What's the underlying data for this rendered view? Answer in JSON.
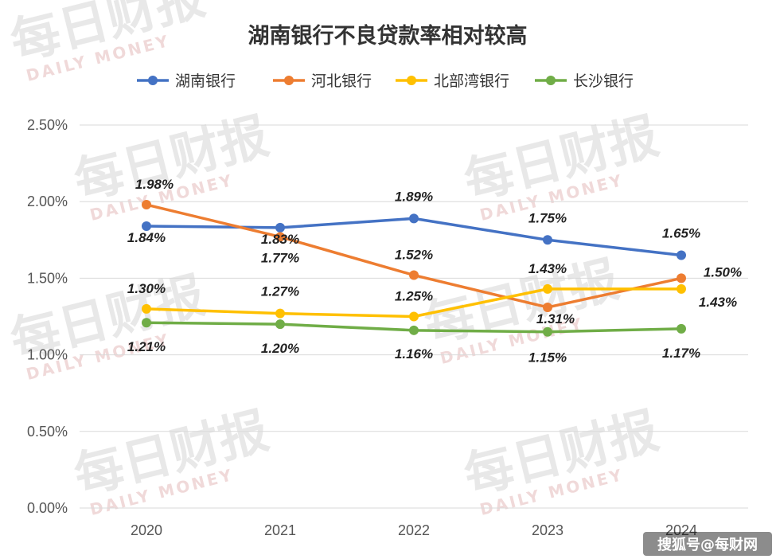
{
  "chart_data": {
    "type": "line",
    "title": "湖南银行不良贷款率相对较高",
    "categories": [
      "2020",
      "2021",
      "2022",
      "2023",
      "2024"
    ],
    "ylim": [
      0,
      2.5
    ],
    "yticks": [
      "0.00%",
      "0.50%",
      "1.00%",
      "1.50%",
      "2.00%",
      "2.50%"
    ],
    "grid": true,
    "legend_position": "top",
    "series": [
      {
        "name": "湖南银行",
        "color": "#4472C4",
        "values": [
          1.84,
          1.83,
          1.89,
          1.75,
          1.65
        ],
        "labels": [
          "1.84%",
          "1.83%",
          "1.89%",
          "1.75%",
          "1.65%"
        ]
      },
      {
        "name": "河北银行",
        "color": "#ED7D31",
        "values": [
          1.98,
          1.77,
          1.52,
          1.31,
          1.5
        ],
        "labels": [
          "1.98%",
          "1.77%",
          "1.52%",
          "1.31%",
          "1.50%"
        ]
      },
      {
        "name": "北部湾银行",
        "color": "#FFC000",
        "values": [
          1.3,
          1.27,
          1.25,
          1.43,
          1.43
        ],
        "labels": [
          "1.30%",
          "1.27%",
          "1.25%",
          "1.43%",
          "1.43%"
        ]
      },
      {
        "name": "长沙银行",
        "color": "#70AD47",
        "values": [
          1.21,
          1.2,
          1.16,
          1.15,
          1.17
        ],
        "labels": [
          "1.21%",
          "1.20%",
          "1.16%",
          "1.15%",
          "1.17%"
        ]
      }
    ]
  },
  "watermark": {
    "main": "每日财报",
    "sub": "DAILY MONEY"
  },
  "credit": "搜狐号@每财网"
}
